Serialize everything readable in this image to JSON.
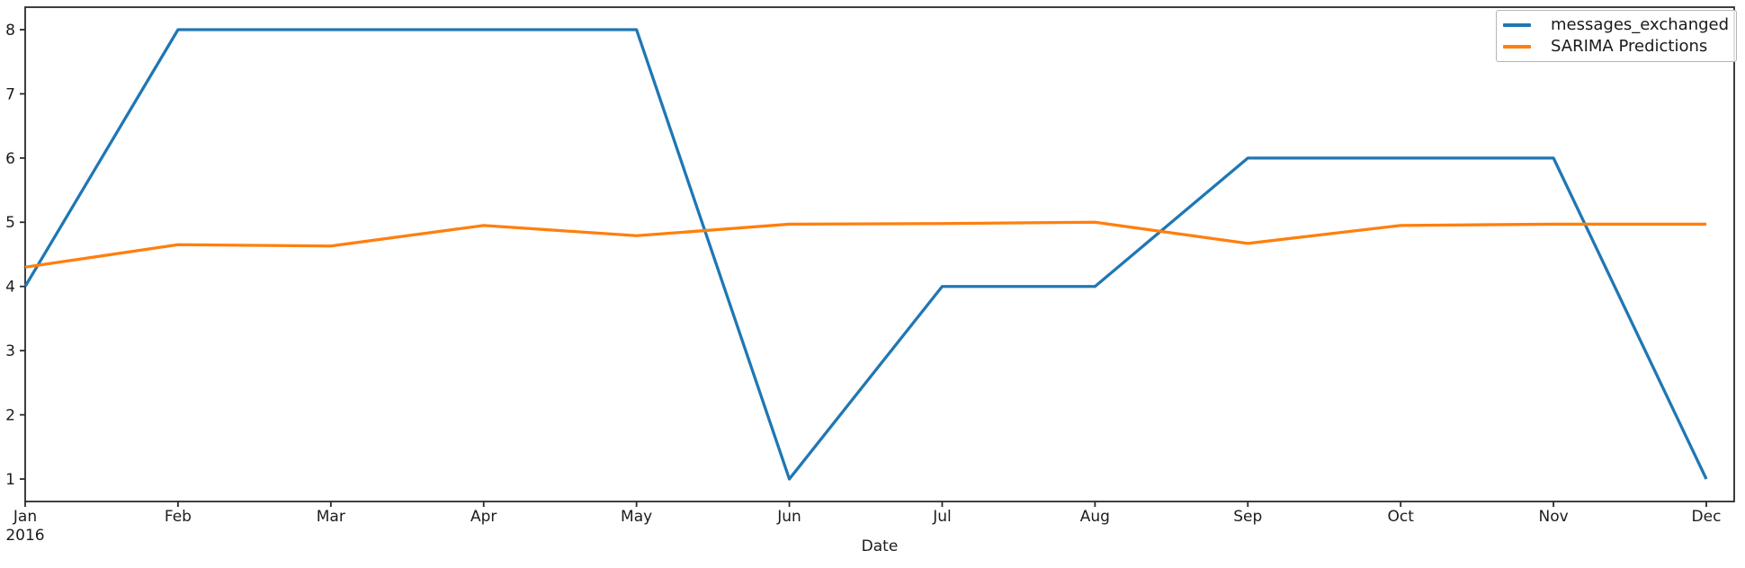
{
  "figure": {
    "background": "#ffffff",
    "spine_color": "#2a2a2a",
    "tick_label_color": "#1c1c1c"
  },
  "chart_data": {
    "type": "line",
    "title": "",
    "xlabel": "Date",
    "ylabel": "",
    "x": [
      "Jan\n2016",
      "Feb",
      "Mar",
      "Apr",
      "May",
      "Jun",
      "Jul",
      "Aug",
      "Sep",
      "Oct",
      "Nov",
      "Dec"
    ],
    "series": [
      {
        "name": "messages_exchanged",
        "color": "#1f77b4",
        "values": [
          4,
          8,
          8,
          8,
          8,
          1,
          4,
          4,
          6,
          6,
          6,
          1
        ]
      },
      {
        "name": "SARIMA Predictions",
        "color": "#ff7f0e",
        "values": [
          4.3,
          4.65,
          4.63,
          4.95,
          4.79,
          4.97,
          4.98,
          5.0,
          4.67,
          4.95,
          4.97,
          4.97
        ]
      }
    ],
    "yticks": [
      1,
      2,
      3,
      4,
      5,
      6,
      7,
      8
    ],
    "ylim": [
      0.65,
      8.35
    ],
    "grid": false,
    "legend_position": "upper right"
  }
}
